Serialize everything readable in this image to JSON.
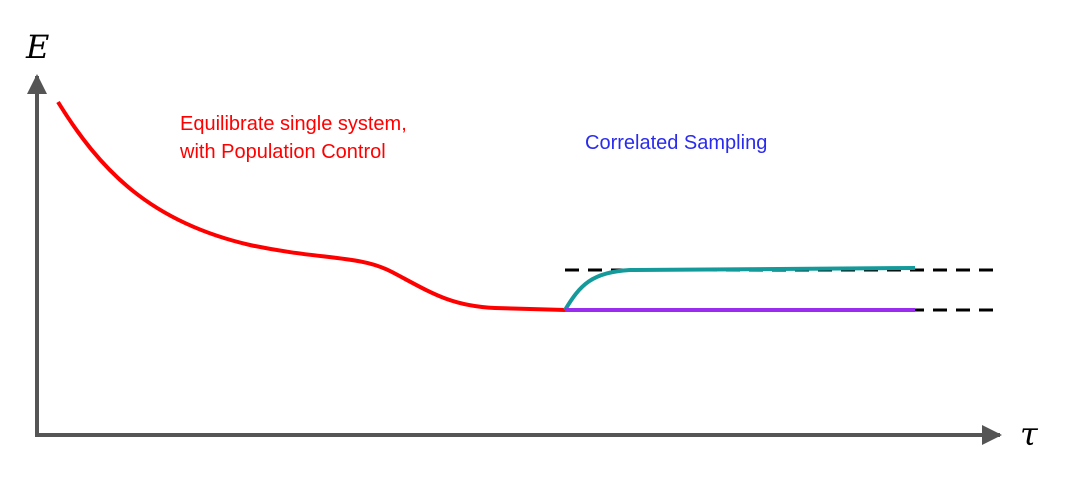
{
  "axes": {
    "y_label": "E",
    "x_label": "τ"
  },
  "annotations": [
    {
      "lines": [
        "Equilibrate single system,",
        "with Population Control"
      ],
      "color": "#ff0000"
    },
    {
      "lines": [
        "Correlated Sampling"
      ],
      "color": "#2b2bee"
    }
  ]
}
